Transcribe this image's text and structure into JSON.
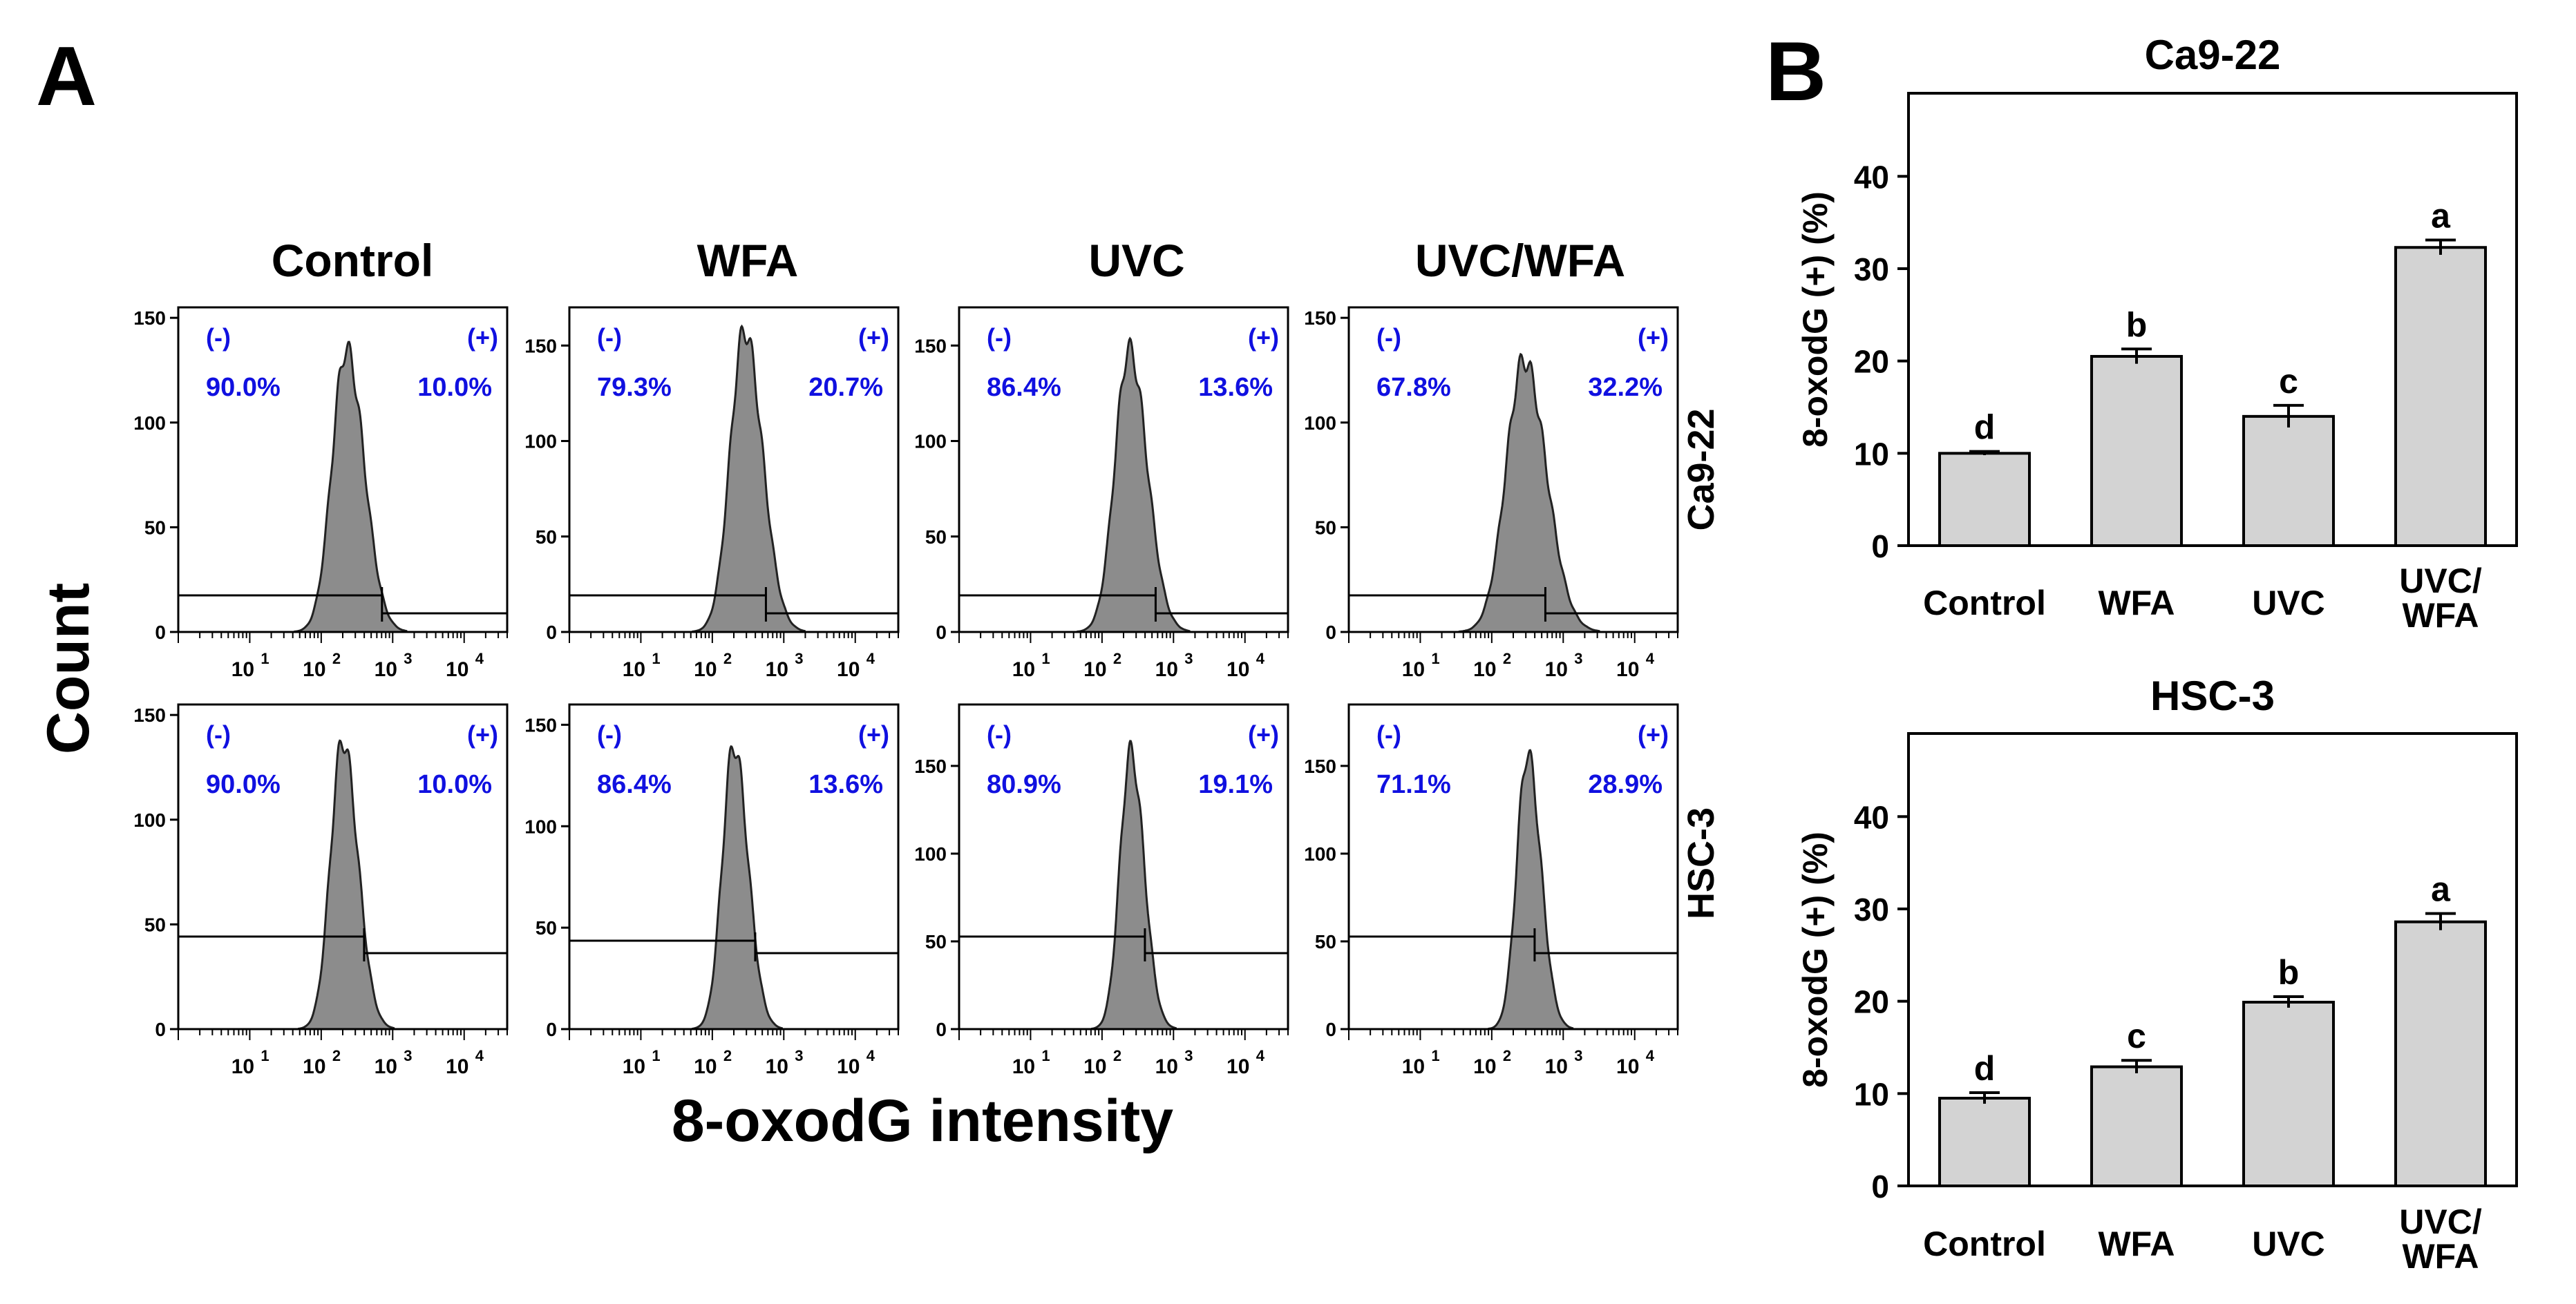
{
  "panels": {
    "a": "A",
    "b": "B"
  },
  "x_axis_title": "8-oxodG intensity",
  "y_axis_title": "Count",
  "conditions": [
    "Control",
    "WFA",
    "UVC",
    "UVC/WFA"
  ],
  "cell_lines": [
    "Ca9-22",
    "HSC-3"
  ],
  "gate_labels": {
    "neg": "(-)",
    "pos": "(+)"
  },
  "colors": {
    "gate_text": "#1010e0",
    "histogram_fill": "#8c8c8c",
    "bar_fill": "#d3d3d3",
    "axis": "#000000"
  },
  "chart_data": [
    {
      "type": "histogram",
      "cell_line": "Ca9-22",
      "condition": "Control",
      "x_scale": "log",
      "xlim": [
        1,
        40000
      ],
      "x_ticks": [
        {
          "value": 10,
          "base": "10",
          "exp": "1"
        },
        {
          "value": 100,
          "base": "10",
          "exp": "2"
        },
        {
          "value": 1000,
          "base": "10",
          "exp": "3"
        },
        {
          "value": 10000,
          "base": "10",
          "exp": "4"
        }
      ],
      "ylim": [
        0,
        155
      ],
      "y_ticks": [
        "0",
        "50",
        "100",
        "150"
      ],
      "peak_log": 2.35,
      "width_log": 0.2,
      "peak_count": 135,
      "gate_threshold_log": 2.85,
      "negative_pct_label": "90.0%",
      "positive_pct_label": "10.0%"
    },
    {
      "type": "histogram",
      "cell_line": "Ca9-22",
      "condition": "WFA",
      "x_scale": "log",
      "xlim": [
        1,
        40000
      ],
      "x_ticks": [
        {
          "value": 10,
          "base": "10",
          "exp": "1"
        },
        {
          "value": 100,
          "base": "10",
          "exp": "2"
        },
        {
          "value": 1000,
          "base": "10",
          "exp": "3"
        },
        {
          "value": 10000,
          "base": "10",
          "exp": "4"
        }
      ],
      "ylim": [
        0,
        170
      ],
      "y_ticks": [
        "0",
        "50",
        "100",
        "150"
      ],
      "peak_log": 2.45,
      "width_log": 0.2,
      "peak_count": 158,
      "gate_threshold_log": 2.75,
      "negative_pct_label": "79.3%",
      "positive_pct_label": "20.7%"
    },
    {
      "type": "histogram",
      "cell_line": "Ca9-22",
      "condition": "UVC",
      "x_scale": "log",
      "xlim": [
        1,
        40000
      ],
      "x_ticks": [
        {
          "value": 10,
          "base": "10",
          "exp": "1"
        },
        {
          "value": 100,
          "base": "10",
          "exp": "2"
        },
        {
          "value": 1000,
          "base": "10",
          "exp": "3"
        },
        {
          "value": 10000,
          "base": "10",
          "exp": "4"
        }
      ],
      "ylim": [
        0,
        170
      ],
      "y_ticks": [
        "0",
        "50",
        "100",
        "150"
      ],
      "peak_log": 2.38,
      "width_log": 0.2,
      "peak_count": 148,
      "gate_threshold_log": 2.75,
      "negative_pct_label": "86.4%",
      "positive_pct_label": "13.6%"
    },
    {
      "type": "histogram",
      "cell_line": "Ca9-22",
      "condition": "UVC/WFA",
      "x_scale": "log",
      "xlim": [
        1,
        40000
      ],
      "x_ticks": [
        {
          "value": 10,
          "base": "10",
          "exp": "1"
        },
        {
          "value": 100,
          "base": "10",
          "exp": "2"
        },
        {
          "value": 1000,
          "base": "10",
          "exp": "3"
        },
        {
          "value": 10000,
          "base": "10",
          "exp": "4"
        }
      ],
      "ylim": [
        0,
        155
      ],
      "y_ticks": [
        "0",
        "50",
        "100",
        "150"
      ],
      "peak_log": 2.45,
      "width_log": 0.25,
      "peak_count": 130,
      "gate_threshold_log": 2.75,
      "negative_pct_label": "67.8%",
      "positive_pct_label": "32.2%"
    },
    {
      "type": "histogram",
      "cell_line": "HSC-3",
      "condition": "Control",
      "x_scale": "log",
      "xlim": [
        1,
        40000
      ],
      "x_ticks": [
        {
          "value": 10,
          "base": "10",
          "exp": "1"
        },
        {
          "value": 100,
          "base": "10",
          "exp": "2"
        },
        {
          "value": 1000,
          "base": "10",
          "exp": "3"
        },
        {
          "value": 10000,
          "base": "10",
          "exp": "4"
        }
      ],
      "ylim": [
        0,
        155
      ],
      "y_ticks": [
        "0",
        "50",
        "100",
        "150"
      ],
      "peak_log": 2.3,
      "width_log": 0.17,
      "peak_count": 138,
      "gate_threshold_log": 2.6,
      "negative_pct_label": "90.0%",
      "positive_pct_label": "10.0%"
    },
    {
      "type": "histogram",
      "cell_line": "HSC-3",
      "condition": "WFA",
      "x_scale": "log",
      "xlim": [
        1,
        40000
      ],
      "x_ticks": [
        {
          "value": 10,
          "base": "10",
          "exp": "1"
        },
        {
          "value": 100,
          "base": "10",
          "exp": "2"
        },
        {
          "value": 1000,
          "base": "10",
          "exp": "3"
        },
        {
          "value": 10000,
          "base": "10",
          "exp": "4"
        }
      ],
      "ylim": [
        0,
        160
      ],
      "y_ticks": [
        "0",
        "50",
        "100",
        "150"
      ],
      "peak_log": 2.3,
      "width_log": 0.16,
      "peak_count": 140,
      "gate_threshold_log": 2.6,
      "negative_pct_label": "86.4%",
      "positive_pct_label": "13.6%"
    },
    {
      "type": "histogram",
      "cell_line": "HSC-3",
      "condition": "UVC",
      "x_scale": "log",
      "xlim": [
        1,
        40000
      ],
      "x_ticks": [
        {
          "value": 10,
          "base": "10",
          "exp": "1"
        },
        {
          "value": 100,
          "base": "10",
          "exp": "2"
        },
        {
          "value": 1000,
          "base": "10",
          "exp": "3"
        },
        {
          "value": 10000,
          "base": "10",
          "exp": "4"
        }
      ],
      "ylim": [
        0,
        185
      ],
      "y_ticks": [
        "0",
        "50",
        "100",
        "150"
      ],
      "peak_log": 2.4,
      "width_log": 0.15,
      "peak_count": 158,
      "gate_threshold_log": 2.6,
      "negative_pct_label": "80.9%",
      "positive_pct_label": "19.1%"
    },
    {
      "type": "histogram",
      "cell_line": "HSC-3",
      "condition": "UVC/WFA",
      "x_scale": "log",
      "xlim": [
        1,
        40000
      ],
      "x_ticks": [
        {
          "value": 10,
          "base": "10",
          "exp": "1"
        },
        {
          "value": 100,
          "base": "10",
          "exp": "2"
        },
        {
          "value": 1000,
          "base": "10",
          "exp": "3"
        },
        {
          "value": 10000,
          "base": "10",
          "exp": "4"
        }
      ],
      "ylim": [
        0,
        185
      ],
      "y_ticks": [
        "0",
        "50",
        "100",
        "150"
      ],
      "peak_log": 2.5,
      "width_log": 0.15,
      "peak_count": 157,
      "gate_threshold_log": 2.6,
      "negative_pct_label": "71.1%",
      "positive_pct_label": "28.9%"
    },
    {
      "type": "bar",
      "title": "Ca9-22",
      "categories": [
        [
          "Control"
        ],
        [
          "WFA"
        ],
        [
          "UVC"
        ],
        [
          "UVC/",
          "WFA"
        ]
      ],
      "values": [
        10,
        20.5,
        14,
        32.3
      ],
      "errors": [
        0.2,
        0.8,
        1.2,
        0.8
      ],
      "significance": [
        "d",
        "b",
        "c",
        "a"
      ],
      "ylabel": "8-oxodG (+) (%)",
      "ylim": [
        0,
        49
      ],
      "y_ticks": [
        "0",
        "10",
        "20",
        "30",
        "40"
      ]
    },
    {
      "type": "bar",
      "title": "HSC-3",
      "categories": [
        [
          "Control"
        ],
        [
          "WFA"
        ],
        [
          "UVC"
        ],
        [
          "UVC/",
          "WFA"
        ]
      ],
      "values": [
        9.5,
        12.9,
        19.9,
        28.6
      ],
      "errors": [
        0.6,
        0.7,
        0.6,
        0.9
      ],
      "significance": [
        "d",
        "c",
        "b",
        "a"
      ],
      "ylabel": "8-oxodG (+) (%)",
      "ylim": [
        0,
        49
      ],
      "y_ticks": [
        "0",
        "10",
        "20",
        "30",
        "40"
      ]
    }
  ]
}
